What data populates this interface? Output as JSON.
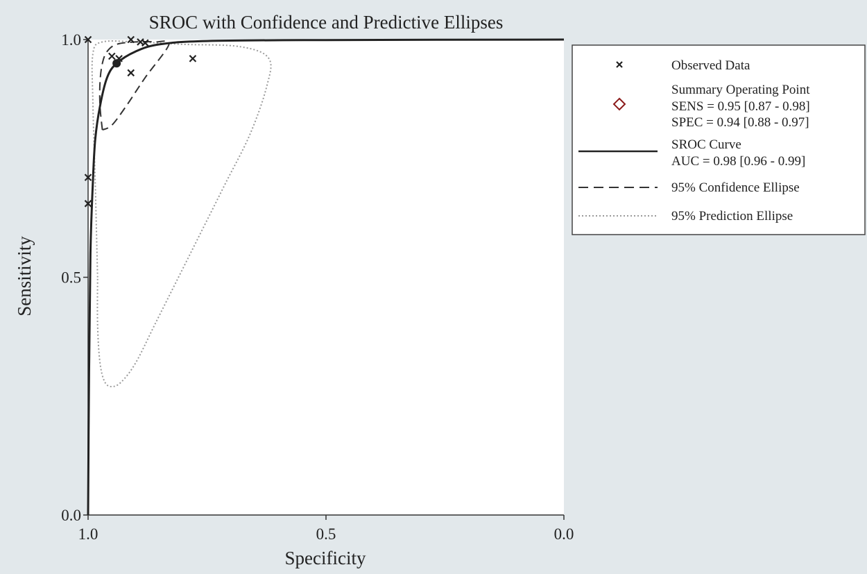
{
  "chart_data": {
    "type": "scatter",
    "title": "SROC with Confidence and Predictive Ellipses",
    "xlabel": "Specificity",
    "ylabel": "Sensitivity",
    "x_reversed": true,
    "xlim": [
      1.0,
      0.0
    ],
    "ylim": [
      0.0,
      1.0
    ],
    "x_ticks": [
      "1.0",
      "0.5",
      "0.0"
    ],
    "x_tick_values": [
      1.0,
      0.5,
      0.0
    ],
    "y_ticks": [
      "0.0",
      "0.5",
      "1.0"
    ],
    "y_tick_values": [
      0.0,
      0.5,
      1.0
    ],
    "grid": false,
    "legend_position": "right",
    "series": [
      {
        "name": "Observed Data",
        "marker": "x",
        "points": [
          {
            "x": 1.0,
            "y": 1.0
          },
          {
            "x": 0.91,
            "y": 1.0
          },
          {
            "x": 0.89,
            "y": 0.995
          },
          {
            "x": 0.88,
            "y": 0.993
          },
          {
            "x": 0.78,
            "y": 0.96
          },
          {
            "x": 0.91,
            "y": 0.93
          },
          {
            "x": 0.95,
            "y": 0.965
          },
          {
            "x": 0.935,
            "y": 0.96
          },
          {
            "x": 1.0,
            "y": 0.71
          },
          {
            "x": 1.0,
            "y": 0.655
          }
        ]
      },
      {
        "name": "Summary Operating Point",
        "marker": "diamond",
        "color": "#8b1a1a",
        "points": [
          {
            "x": 0.94,
            "y": 0.95
          }
        ]
      },
      {
        "name": "SROC Curve",
        "style": "solid",
        "points": [
          {
            "x": 1.0,
            "y": 0.0
          },
          {
            "x": 0.998,
            "y": 0.3
          },
          {
            "x": 0.995,
            "y": 0.55
          },
          {
            "x": 0.99,
            "y": 0.7
          },
          {
            "x": 0.985,
            "y": 0.79
          },
          {
            "x": 0.975,
            "y": 0.86
          },
          {
            "x": 0.96,
            "y": 0.92
          },
          {
            "x": 0.94,
            "y": 0.95
          },
          {
            "x": 0.9,
            "y": 0.975
          },
          {
            "x": 0.85,
            "y": 0.99
          },
          {
            "x": 0.75,
            "y": 0.997
          },
          {
            "x": 0.5,
            "y": 0.999
          },
          {
            "x": 0.0,
            "y": 1.0
          }
        ]
      },
      {
        "name": "95% Confidence Ellipse",
        "style": "dashed",
        "points": [
          {
            "x": 0.97,
            "y": 0.81
          },
          {
            "x": 0.975,
            "y": 0.86
          },
          {
            "x": 0.975,
            "y": 0.91
          },
          {
            "x": 0.97,
            "y": 0.95
          },
          {
            "x": 0.96,
            "y": 0.975
          },
          {
            "x": 0.94,
            "y": 0.99
          },
          {
            "x": 0.9,
            "y": 0.995
          },
          {
            "x": 0.86,
            "y": 0.995
          },
          {
            "x": 0.83,
            "y": 0.99
          },
          {
            "x": 0.88,
            "y": 0.92
          },
          {
            "x": 0.92,
            "y": 0.86
          },
          {
            "x": 0.95,
            "y": 0.82
          },
          {
            "x": 0.97,
            "y": 0.81
          }
        ]
      },
      {
        "name": "95% Prediction Ellipse",
        "style": "dotted",
        "points": [
          {
            "x": 0.98,
            "y": 0.5
          },
          {
            "x": 0.985,
            "y": 0.7
          },
          {
            "x": 0.99,
            "y": 0.87
          },
          {
            "x": 0.99,
            "y": 0.97
          },
          {
            "x": 0.97,
            "y": 0.995
          },
          {
            "x": 0.9,
            "y": 0.995
          },
          {
            "x": 0.8,
            "y": 0.99
          },
          {
            "x": 0.68,
            "y": 0.985
          },
          {
            "x": 0.62,
            "y": 0.96
          },
          {
            "x": 0.625,
            "y": 0.9
          },
          {
            "x": 0.66,
            "y": 0.8
          },
          {
            "x": 0.71,
            "y": 0.7
          },
          {
            "x": 0.76,
            "y": 0.6
          },
          {
            "x": 0.81,
            "y": 0.5
          },
          {
            "x": 0.86,
            "y": 0.4
          },
          {
            "x": 0.9,
            "y": 0.32
          },
          {
            "x": 0.93,
            "y": 0.28
          },
          {
            "x": 0.95,
            "y": 0.27
          },
          {
            "x": 0.965,
            "y": 0.28
          },
          {
            "x": 0.975,
            "y": 0.32
          },
          {
            "x": 0.98,
            "y": 0.4
          },
          {
            "x": 0.98,
            "y": 0.5
          }
        ]
      }
    ],
    "annotations": [
      {
        "text": "",
        "x": 0.97,
        "y": 0.965
      }
    ],
    "legend": {
      "observed_label": "Observed Data",
      "summary_label": "Summary Operating Point",
      "summary_sens": "SENS = 0.95 [0.87 - 0.98]",
      "summary_spec": "SPEC = 0.94 [0.88 - 0.97]",
      "sroc_label": "SROC Curve",
      "sroc_auc": "AUC = 0.98 [0.96 - 0.99]",
      "conf_label": "95% Confidence Ellipse",
      "pred_label": "95% Prediction Ellipse"
    }
  }
}
